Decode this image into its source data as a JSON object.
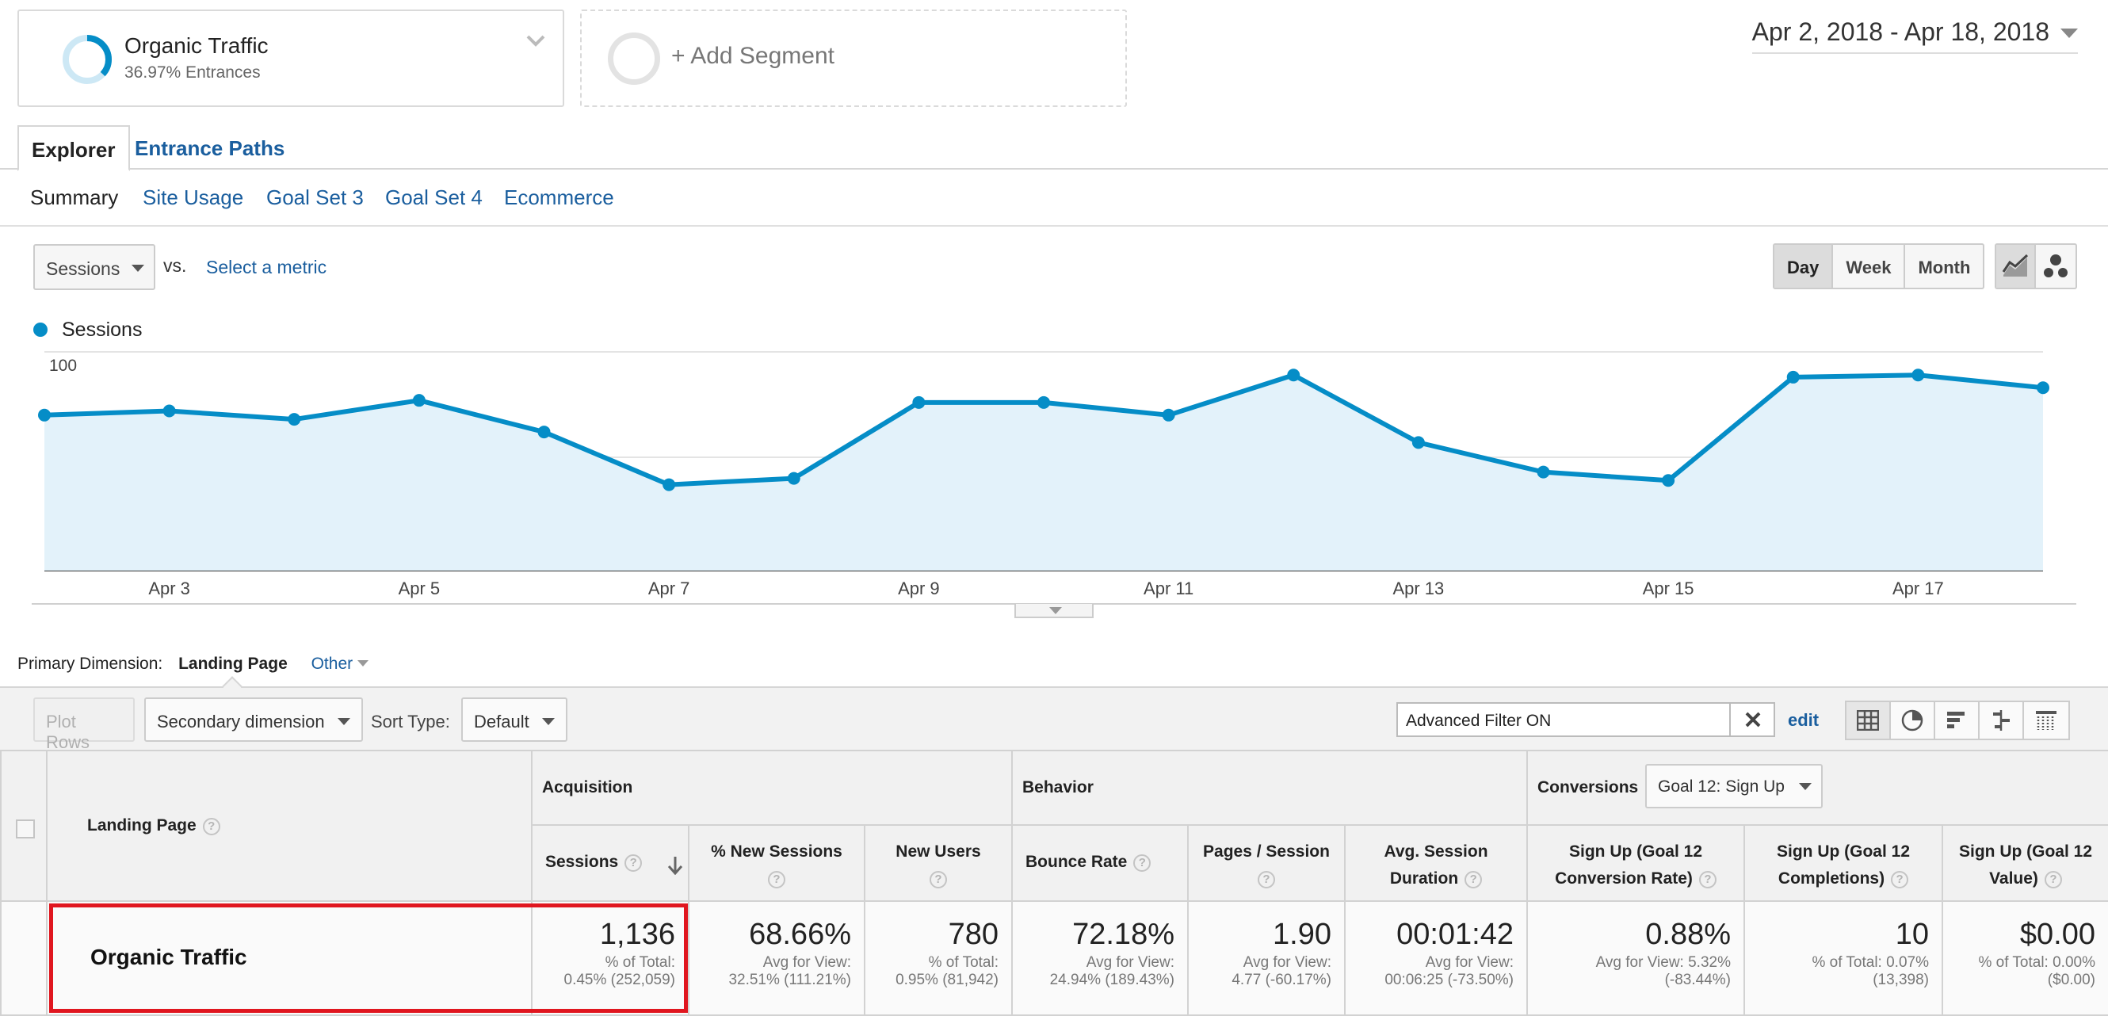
{
  "segment": {
    "name": "Organic Traffic",
    "subtitle": "36.97% Entrances",
    "ring_fraction": 0.3697,
    "color": "#058dc7"
  },
  "add_segment_label": "+ Add Segment",
  "date_range": "Apr 2, 2018 - Apr 18, 2018",
  "report_tabs": [
    {
      "label": "Explorer",
      "active": true
    },
    {
      "label": "Entrance Paths",
      "active": false
    }
  ],
  "subtabs": [
    "Summary",
    "Site Usage",
    "Goal Set 3",
    "Goal Set 4",
    "Ecommerce"
  ],
  "chart_controls": {
    "metric": "Sessions",
    "vs": "vs.",
    "select_metric": "Select a metric",
    "periods": [
      "Day",
      "Week",
      "Month"
    ],
    "active_period": "Day"
  },
  "chart_data": {
    "type": "area",
    "x": [
      "Apr 2",
      "Apr 3",
      "Apr 4",
      "Apr 5",
      "Apr 6",
      "Apr 7",
      "Apr 8",
      "Apr 9",
      "Apr 10",
      "Apr 11",
      "Apr 12",
      "Apr 13",
      "Apr 14",
      "Apr 15",
      "Apr 16",
      "Apr 17",
      "Apr 18"
    ],
    "x_tick_labels": [
      "Apr 3",
      "Apr 5",
      "Apr 7",
      "Apr 9",
      "Apr 11",
      "Apr 13",
      "Apr 15",
      "Apr 17"
    ],
    "series": [
      {
        "name": "Sessions",
        "values": [
          70,
          72,
          68,
          77,
          62,
          37,
          40,
          76,
          76,
          70,
          89,
          57,
          43,
          39,
          88,
          89,
          83
        ],
        "color": "#058dc7"
      }
    ],
    "y_ticks": [
      50,
      100
    ],
    "ylim": [
      0,
      100
    ],
    "grid": true,
    "legend": "top-left",
    "title": "",
    "xlabel": "",
    "ylabel": ""
  },
  "primary_dimension": {
    "label": "Primary Dimension:",
    "value": "Landing Page",
    "other": "Other"
  },
  "toolbar": {
    "plot_rows": "Plot Rows",
    "secondary_dimension": "Secondary dimension",
    "sort_type_label": "Sort Type:",
    "sort_type_value": "Default",
    "filter_text": "Advanced Filter ON",
    "edit": "edit"
  },
  "table": {
    "dimension_header": "Landing Page",
    "groups": {
      "acquisition": "Acquisition",
      "behavior": "Behavior",
      "conversions": "Conversions",
      "goal_select": "Goal 12: Sign Up"
    },
    "columns": [
      {
        "line1": "Sessions",
        "line2": "",
        "value": "1,136",
        "sub1": "% of Total:",
        "sub2": "0.45% (252,059)"
      },
      {
        "line1": "% New Sessions",
        "line2": "",
        "value": "68.66%",
        "sub1": "Avg for View:",
        "sub2": "32.51% (111.21%)"
      },
      {
        "line1": "New Users",
        "line2": "",
        "value": "780",
        "sub1": "% of Total:",
        "sub2": "0.95% (81,942)"
      },
      {
        "line1": "Bounce Rate",
        "line2": "",
        "value": "72.18%",
        "sub1": "Avg for View:",
        "sub2": "24.94% (189.43%)"
      },
      {
        "line1": "Pages / Session",
        "line2": "",
        "value": "1.90",
        "sub1": "Avg for View:",
        "sub2": "4.77 (-60.17%)"
      },
      {
        "line1": "Avg. Session",
        "line2": "Duration",
        "value": "00:01:42",
        "sub1": "Avg for View:",
        "sub2": "00:06:25 (-73.50%)"
      },
      {
        "line1": "Sign Up (Goal 12",
        "line2": "Conversion Rate)",
        "value": "0.88%",
        "sub1": "Avg for View: 5.32%",
        "sub2": "(-83.44%)"
      },
      {
        "line1": "Sign Up (Goal 12",
        "line2": "Completions)",
        "value": "10",
        "sub1": "% of Total: 0.07%",
        "sub2": "(13,398)"
      },
      {
        "line1": "Sign Up (Goal 12",
        "line2": "Value)",
        "value": "$0.00",
        "sub1": "% of Total: 0.00%",
        "sub2": "($0.00)"
      }
    ],
    "row_label": "Organic Traffic",
    "highlight_color": "#e0161f"
  }
}
